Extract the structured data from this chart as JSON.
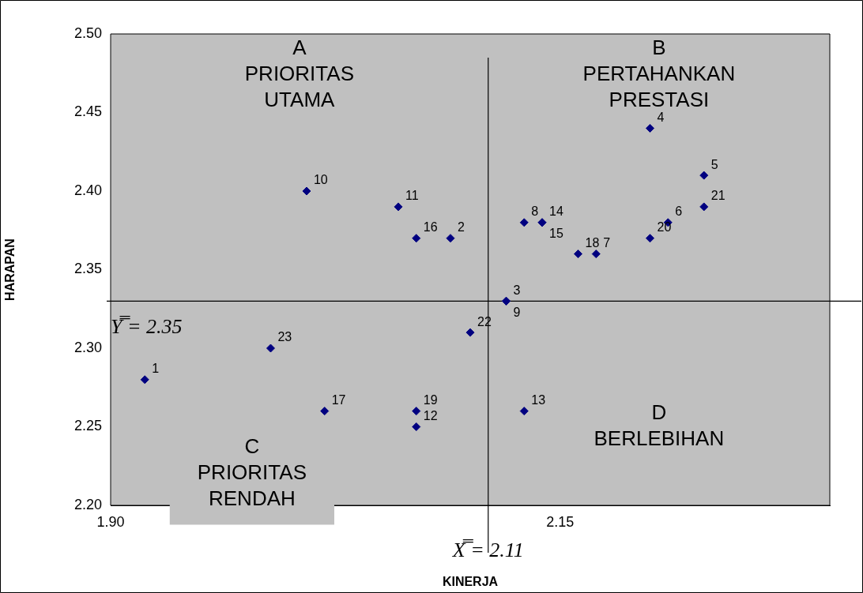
{
  "chart_data": {
    "type": "scatter",
    "xlabel": "KINERJA",
    "ylabel": "HARAPAN",
    "x": [
      1.919,
      2.089,
      2.12,
      2.2,
      2.23,
      2.21,
      2.17,
      2.13,
      2.12,
      2.009,
      2.06,
      2.07,
      2.13,
      2.14,
      2.14,
      2.07,
      2.019,
      2.16,
      2.07,
      2.2,
      2.23,
      2.1,
      1.989
    ],
    "series": [
      {
        "color": "#000080",
        "values": [
          2.28,
          2.37,
          2.33,
          2.44,
          2.41,
          2.38,
          2.36,
          2.38,
          2.33,
          2.4,
          2.39,
          2.25,
          2.26,
          2.38,
          2.38,
          2.37,
          2.26,
          2.36,
          2.26,
          2.37,
          2.39,
          2.31,
          2.3
        ]
      }
    ],
    "marker": "diamond",
    "grid": false,
    "legend": false,
    "xlim": [
      1.9,
      2.3
    ],
    "xticks": [
      {
        "value": 1.9,
        "label": "1.90"
      },
      {
        "value": 2.15,
        "label": "2.15"
      }
    ],
    "ylim": [
      2.2,
      2.5
    ],
    "yticks": [
      {
        "value": 2.2,
        "label": "2.20"
      },
      {
        "value": 2.25,
        "label": "2.25"
      },
      {
        "value": 2.3,
        "label": "2.30"
      },
      {
        "value": 2.35,
        "label": "2.35"
      },
      {
        "value": 2.4,
        "label": "2.40"
      },
      {
        "value": 2.45,
        "label": "2.45"
      },
      {
        "value": 2.5,
        "label": "2.50"
      }
    ],
    "ref_lines": [
      {
        "axis": "x",
        "value": 2.11,
        "color": "#000000"
      },
      {
        "axis": "y",
        "value": 2.33,
        "color": "#000000"
      }
    ],
    "annotations": [
      "A\nPRIORITAS\nUTAMA",
      "B\nPERTAHANKAN\nPRESTASI",
      "C\nPRIORITAS\nRENDAH",
      "D\nBERLEBIHAN",
      "Y̿ = 2.35",
      "X̿ = 2.11",
      {
        "text": "1",
        "x": 1.919,
        "y": 2.28
      },
      {
        "text": "2",
        "x": 2.089,
        "y": 2.37
      },
      {
        "text": "3",
        "x": 2.12,
        "y": 2.33
      },
      {
        "text": "4",
        "x": 2.2,
        "y": 2.44
      },
      {
        "text": "5",
        "x": 2.23,
        "y": 2.41
      },
      {
        "text": "6",
        "x": 2.21,
        "y": 2.38
      },
      {
        "text": "7",
        "x": 2.17,
        "y": 2.36
      },
      {
        "text": "8",
        "x": 2.13,
        "y": 2.38
      },
      {
        "text": "9",
        "x": 2.12,
        "y": 2.33
      },
      {
        "text": "10",
        "x": 2.009,
        "y": 2.4
      },
      {
        "text": "11",
        "x": 2.06,
        "y": 2.39
      },
      {
        "text": "12",
        "x": 2.07,
        "y": 2.25
      },
      {
        "text": "13",
        "x": 2.13,
        "y": 2.26
      },
      {
        "text": "14",
        "x": 2.14,
        "y": 2.38
      },
      {
        "text": "15",
        "x": 2.14,
        "y": 2.38
      },
      {
        "text": "16",
        "x": 2.07,
        "y": 2.37
      },
      {
        "text": "17",
        "x": 2.019,
        "y": 2.26
      },
      {
        "text": "18",
        "x": 2.16,
        "y": 2.36
      },
      {
        "text": "19",
        "x": 2.07,
        "y": 2.26
      },
      {
        "text": "20",
        "x": 2.2,
        "y": 2.37
      },
      {
        "text": "21",
        "x": 2.23,
        "y": 2.39
      },
      {
        "text": "22",
        "x": 2.1,
        "y": 2.31
      },
      {
        "text": "23",
        "x": 1.989,
        "y": 2.3
      }
    ]
  }
}
